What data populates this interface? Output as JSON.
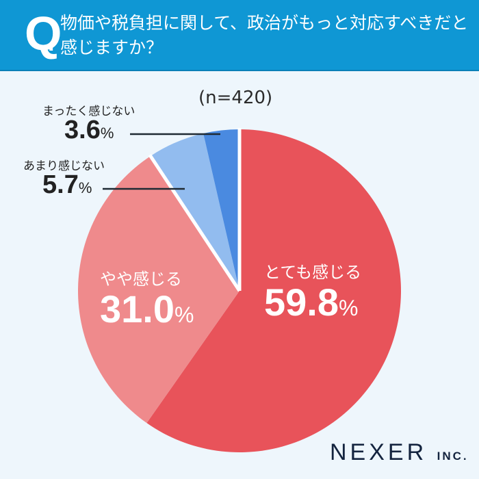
{
  "header": {
    "q_mark": "Q",
    "q_dot": ".",
    "question": "物価や税負担に関して、政治がもっと対応すべきだと感じますか？"
  },
  "sample_size": "(n=420)",
  "colors": {
    "header_bg": "#0f97d4",
    "background": "#eef6fc",
    "very_much": "#e8535a",
    "somewhat": "#ef8a8c",
    "not_much": "#92bcef",
    "not_at_all": "#4a8ae0"
  },
  "labels": {
    "not_at_all": {
      "name": "まったく感じない",
      "value": "3.6",
      "unit": "%"
    },
    "not_much": {
      "name": "あまり感じない",
      "value": "5.7",
      "unit": "%"
    },
    "somewhat": {
      "name": "やや感じる",
      "value": "31.0",
      "unit": "%"
    },
    "very_much": {
      "name": "とても感じる",
      "value": "59.8",
      "unit": "%"
    }
  },
  "logo": {
    "main": "NEXER",
    "suffix": "INC."
  },
  "chart_data": {
    "type": "pie",
    "title": "物価や税負担に関して、政治がもっと対応すべきだと感じますか？",
    "subtitle": "(n=420)",
    "categories": [
      "とても感じる",
      "やや感じる",
      "あまり感じない",
      "まったく感じない"
    ],
    "values": [
      59.8,
      31.0,
      5.7,
      3.6
    ],
    "unit": "%",
    "start_angle": "12 o'clock, clockwise",
    "colors": [
      "#e8535a",
      "#ef8a8c",
      "#92bcef",
      "#4a8ae0"
    ]
  }
}
